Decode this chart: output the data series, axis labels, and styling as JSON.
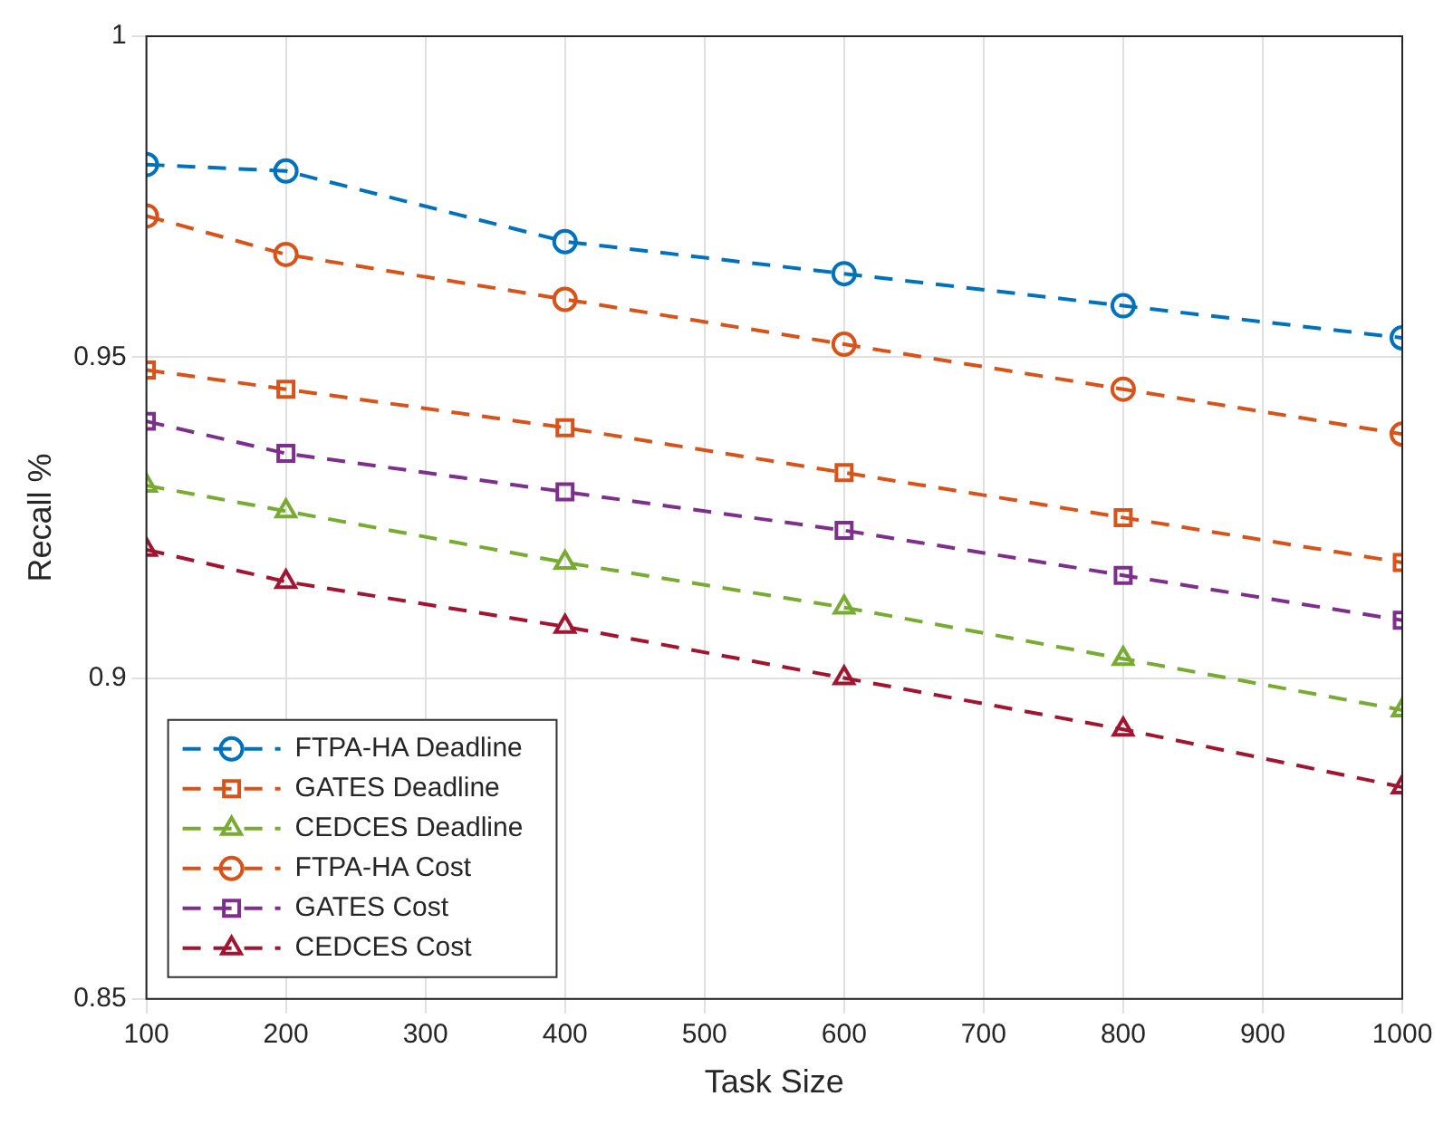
{
  "chart_data": {
    "type": "line",
    "xlabel": "Task Size",
    "ylabel": "Recall %",
    "x": [
      100,
      200,
      400,
      600,
      800,
      1000
    ],
    "series": [
      {
        "name": "FTPA-HA Deadline",
        "color": "#0072bd",
        "marker": "circle",
        "values": [
          0.98,
          0.979,
          0.968,
          0.963,
          0.958,
          0.953
        ]
      },
      {
        "name": "GATES Deadline",
        "color": "#d95319",
        "marker": "square",
        "values": [
          0.948,
          0.945,
          0.939,
          0.932,
          0.925,
          0.918
        ]
      },
      {
        "name": "CEDCES Deadline",
        "color": "#77ac30",
        "marker": "triangle",
        "values": [
          0.93,
          0.926,
          0.918,
          0.911,
          0.903,
          0.895
        ]
      },
      {
        "name": "FTPA-HA Cost",
        "color": "#d95319",
        "marker": "circle",
        "values": [
          0.972,
          0.966,
          0.959,
          0.952,
          0.945,
          0.938
        ]
      },
      {
        "name": "GATES Cost",
        "color": "#7e2f8e",
        "marker": "square",
        "values": [
          0.94,
          0.935,
          0.929,
          0.923,
          0.916,
          0.909
        ]
      },
      {
        "name": "CEDCES Cost",
        "color": "#a2142f",
        "marker": "triangle",
        "values": [
          0.92,
          0.915,
          0.908,
          0.9,
          0.892,
          0.883
        ]
      }
    ],
    "xlim": [
      100,
      1000
    ],
    "xticks": [
      100,
      200,
      300,
      400,
      500,
      600,
      700,
      800,
      900,
      1000
    ],
    "ylim": [
      0.85,
      1
    ],
    "yticks": [
      0.85,
      0.9,
      0.95,
      1
    ],
    "grid": true,
    "legend": "bottom left",
    "line_style": "dashed"
  }
}
